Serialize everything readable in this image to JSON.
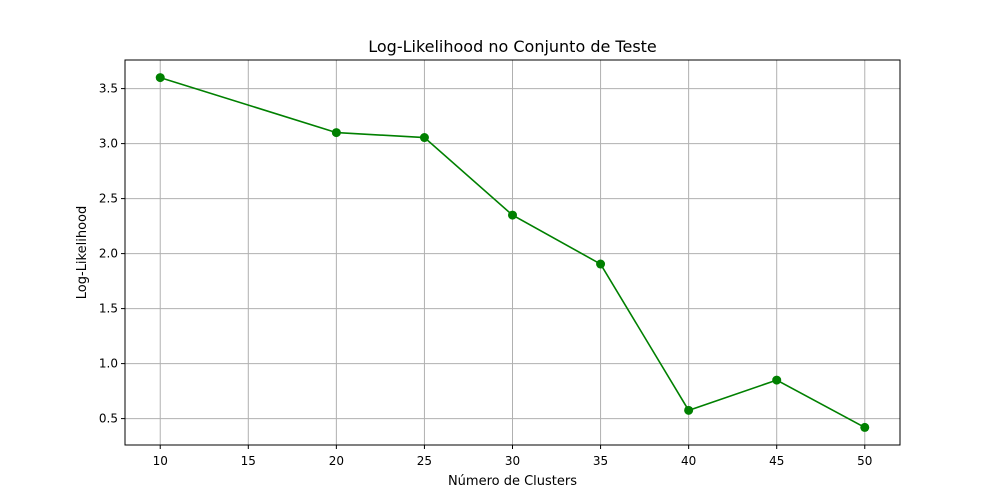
{
  "chart_data": {
    "type": "line",
    "title": "Log-Likelihood no Conjunto de Teste",
    "xlabel": "Número de Clusters",
    "ylabel": "Log-Likelihood",
    "x": [
      10,
      20,
      25,
      30,
      35,
      40,
      45,
      50
    ],
    "series": [
      {
        "values": [
          3.6,
          3.1,
          3.055,
          2.35,
          1.905,
          0.575,
          0.85,
          0.42
        ]
      }
    ],
    "xticks": [
      10,
      15,
      20,
      25,
      30,
      35,
      40,
      45,
      50
    ],
    "yticks": [
      0.5,
      1.0,
      1.5,
      2.0,
      2.5,
      3.0,
      3.5
    ],
    "xlim": [
      8,
      52
    ],
    "ylim": [
      0.26,
      3.76
    ],
    "grid": true,
    "colors": {
      "line": "#008000",
      "marker": "#008000"
    }
  }
}
